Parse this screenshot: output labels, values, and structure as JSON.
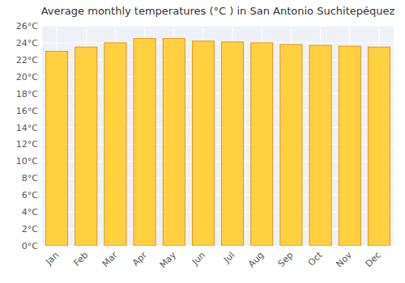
{
  "chart_data": {
    "type": "bar",
    "title": "Average monthly temperatures (°C ) in San Antonio Suchitepéquez",
    "categories": [
      "Jan",
      "Feb",
      "Mar",
      "Apr",
      "May",
      "Jun",
      "Jul",
      "Aug",
      "Sep",
      "Oct",
      "Nov",
      "Dec"
    ],
    "values": [
      23.0,
      23.5,
      24.0,
      24.5,
      24.5,
      24.2,
      24.1,
      24.0,
      23.8,
      23.7,
      23.6,
      23.5
    ],
    "color": "#FFD040",
    "ylim": [
      0,
      26
    ],
    "yticks": [
      {
        "value": 0,
        "label": "0°C"
      },
      {
        "value": 2,
        "label": "2°C"
      },
      {
        "value": 4,
        "label": "4°C"
      },
      {
        "value": 6,
        "label": "6°C"
      },
      {
        "value": 8,
        "label": "8°C"
      },
      {
        "value": 10,
        "label": "10°C"
      },
      {
        "value": 12,
        "label": "12°C"
      },
      {
        "value": 14,
        "label": "14°C"
      },
      {
        "value": 16,
        "label": "16°C"
      },
      {
        "value": 18,
        "label": "18°C"
      },
      {
        "value": 20,
        "label": "20°C"
      },
      {
        "value": 22,
        "label": "22°C"
      },
      {
        "value": 24,
        "label": "24°C"
      },
      {
        "value": 26,
        "label": "26°C"
      }
    ],
    "grid": true
  }
}
